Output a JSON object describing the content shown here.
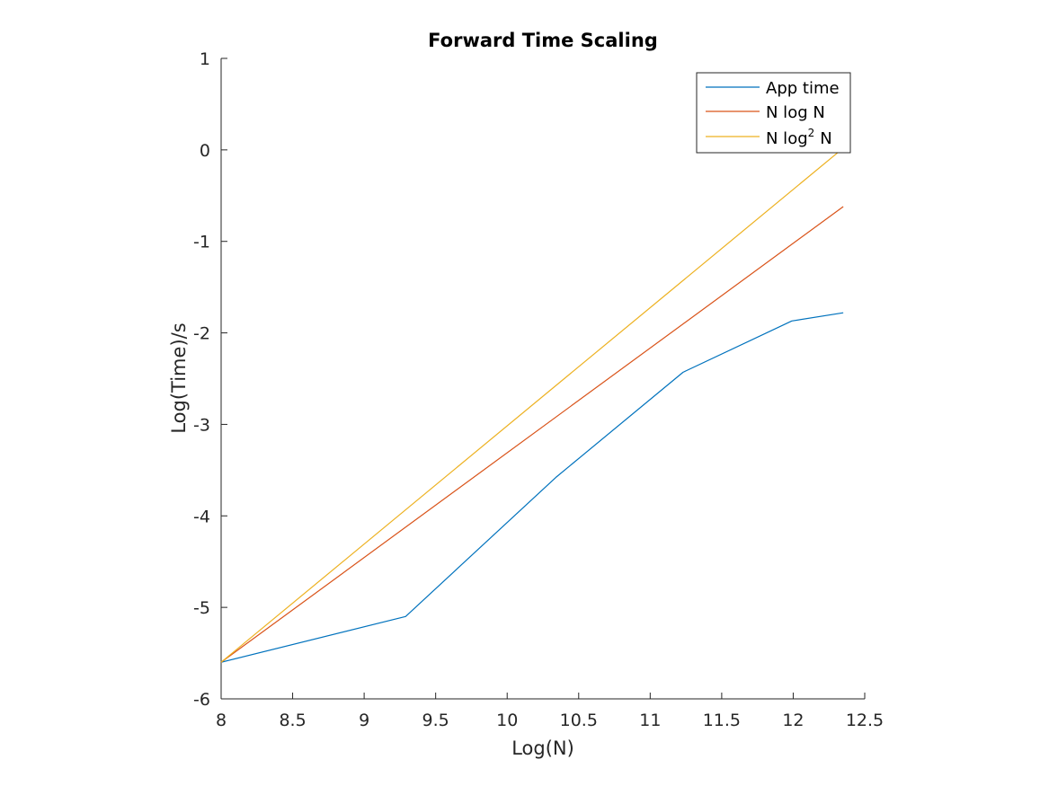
{
  "chart_data": {
    "type": "line",
    "title": "Forward Time Scaling",
    "xlabel": "Log(N)",
    "ylabel": "Log(Time)/s",
    "xlim": [
      8,
      12.5
    ],
    "ylim": [
      -6,
      1
    ],
    "xticks": [
      "8",
      "8.5",
      "9",
      "9.5",
      "10",
      "10.5",
      "11",
      "11.5",
      "12",
      "12.5"
    ],
    "yticks": [
      "1",
      "0",
      "-1",
      "-2",
      "-3",
      "-4",
      "-5",
      "-6"
    ],
    "grid": false,
    "legend_position": "top-right",
    "series": [
      {
        "name": "App time",
        "color": "#0072BD",
        "x": [
          8,
          9.29,
          10.34,
          11.23,
          11.99,
          12.35
        ],
        "y": [
          -5.6,
          -5.1,
          -3.58,
          -2.43,
          -1.87,
          -1.78
        ]
      },
      {
        "name": "N log N",
        "color": "#D95319",
        "x": [
          8,
          12.35
        ],
        "y": [
          -5.6,
          -0.62
        ]
      },
      {
        "name_prefix": "N log",
        "name_sup": "2",
        "name_suffix": "N",
        "color": "#EDB120",
        "x": [
          8,
          12.35
        ],
        "y": [
          -5.6,
          0.02
        ]
      }
    ]
  }
}
